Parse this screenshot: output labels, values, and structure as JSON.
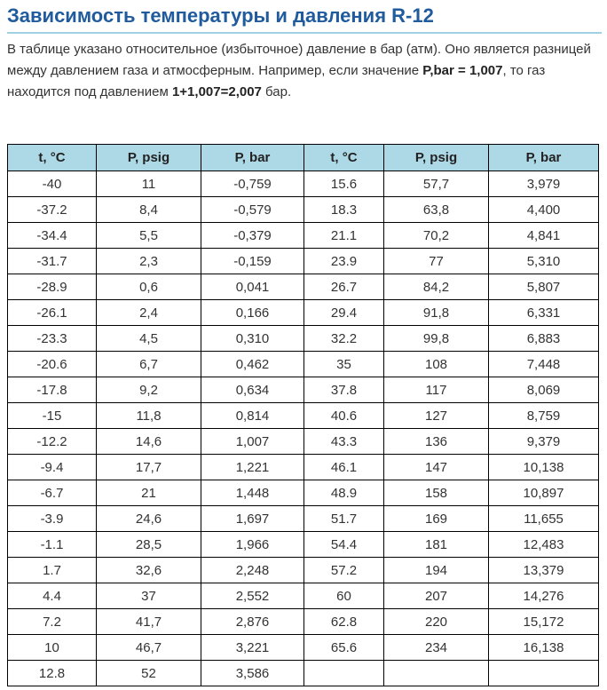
{
  "title": "Зависимость температуры и давления R-12",
  "intro": {
    "text_1": "В таблице указано относительное (избыточное) давление в бар (атм). Оно является разницей между давлением газа и атмосферным. Например, если значение ",
    "bold_1": "P,bar = 1,007",
    "text_2": ", то газ находится под давлением ",
    "bold_2": "1+1,007=2,007",
    "text_3": " бар."
  },
  "table": {
    "headers": [
      "t, °C",
      "P, psig",
      "P, bar",
      "t, °C",
      "P, psig",
      "P, bar"
    ],
    "rows": [
      [
        "-40",
        "11",
        "-0,759",
        "15.6",
        "57,7",
        "3,979"
      ],
      [
        "-37.2",
        "8,4",
        "-0,579",
        "18.3",
        "63,8",
        "4,400"
      ],
      [
        "-34.4",
        "5,5",
        "-0,379",
        "21.1",
        "70,2",
        "4,841"
      ],
      [
        "-31.7",
        "2,3",
        "-0,159",
        "23.9",
        "77",
        "5,310"
      ],
      [
        "-28.9",
        "0,6",
        "0,041",
        "26.7",
        "84,2",
        "5,807"
      ],
      [
        "-26.1",
        "2,4",
        "0,166",
        "29.4",
        "91,8",
        "6,331"
      ],
      [
        "-23.3",
        "4,5",
        "0,310",
        "32.2",
        "99,8",
        "6,883"
      ],
      [
        "-20.6",
        "6,7",
        "0,462",
        "35",
        "108",
        "7,448"
      ],
      [
        "-17.8",
        "9,2",
        "0,634",
        "37.8",
        "117",
        "8,069"
      ],
      [
        "-15",
        "11,8",
        "0,814",
        "40.6",
        "127",
        "8,759"
      ],
      [
        "-12.2",
        "14,6",
        "1,007",
        "43.3",
        "136",
        "9,379"
      ],
      [
        "-9.4",
        "17,7",
        "1,221",
        "46.1",
        "147",
        "10,138"
      ],
      [
        "-6.7",
        "21",
        "1,448",
        "48.9",
        "158",
        "10,897"
      ],
      [
        "-3.9",
        "24,6",
        "1,697",
        "51.7",
        "169",
        "11,655"
      ],
      [
        "-1.1",
        "28,5",
        "1,966",
        "54.4",
        "181",
        "12,483"
      ],
      [
        "1.7",
        "32,6",
        "2,248",
        "57.2",
        "194",
        "13,379"
      ],
      [
        "4.4",
        "37",
        "2,552",
        "60",
        "207",
        "14,276"
      ],
      [
        "7.2",
        "41,7",
        "2,876",
        "62.8",
        "220",
        "15,172"
      ],
      [
        "10",
        "46,7",
        "3,221",
        "65.6",
        "234",
        "16,138"
      ],
      [
        "12.8",
        "52",
        "3,586",
        "",
        "",
        ""
      ]
    ]
  },
  "colors": {
    "title": "#1f5b9d",
    "title_underline": "#9fd0e3",
    "header_bg": "#add8e6",
    "body_text": "#333333",
    "border": "#000000"
  }
}
